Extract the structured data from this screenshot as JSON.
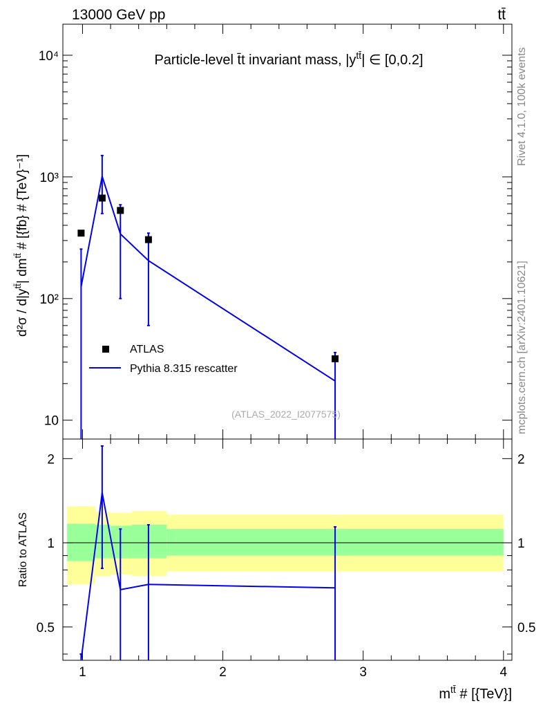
{
  "header": {
    "left": "13000 GeV pp",
    "right": "tt̄"
  },
  "side_labels": {
    "rivet": "Rivet 4.1.0,  100k events",
    "mcplots": "mcplots.cern.ch [arXiv:2401.10621]"
  },
  "chart_data": {
    "type": "line",
    "title": "Particle-level t̄t invariant mass, |y^{tt̄}| ∈ [0,0.2]",
    "analysis_id": "(ATLAS_2022_I2077575)",
    "xlabel": "m^{tt̄} # [{TeV}]",
    "ylabel": "d²σ / d|y^{tt̄}| dm^{tt̄} # [{fb} # {TeV}⁻¹]",
    "ratio_ylabel": "Ratio to ATLAS",
    "xlim": [
      0.86,
      4.06
    ],
    "ylim": [
      7,
      18000
    ],
    "yscale": "log",
    "ratio_ylim": [
      0.38,
      2.35
    ],
    "x_ticks": [
      1,
      2,
      3,
      4
    ],
    "y_ticks": [
      {
        "value": 10,
        "label": "10"
      },
      {
        "value": 100,
        "label": "10²"
      },
      {
        "value": 1000,
        "label": "10³"
      },
      {
        "value": 10000,
        "label": "10⁴"
      }
    ],
    "ratio_ticks": [
      0.5,
      1,
      2
    ],
    "legend": {
      "placement": "lower-left",
      "data_label": "ATLAS",
      "mc_label": "Pythia 8.315 rescatter"
    },
    "data": {
      "name": "ATLAS",
      "x": [
        0.99,
        1.14,
        1.27,
        1.47,
        2.8
      ],
      "y": [
        345,
        670,
        530,
        305,
        32
      ],
      "bins": [
        [
          0.89,
          1.09
        ],
        [
          1.09,
          1.2
        ],
        [
          1.2,
          1.35
        ],
        [
          1.35,
          1.6
        ],
        [
          1.6,
          4.0
        ]
      ],
      "total_band": [
        [
          0.71,
          1.35
        ],
        [
          0.76,
          1.29
        ],
        [
          0.77,
          1.28
        ],
        [
          0.76,
          1.3
        ],
        [
          0.79,
          1.26
        ]
      ],
      "stat_band": [
        [
          0.86,
          1.17
        ],
        [
          0.88,
          1.16
        ],
        [
          0.88,
          1.15
        ],
        [
          0.88,
          1.16
        ],
        [
          0.9,
          1.12
        ]
      ]
    },
    "mc": {
      "name": "Pythia 8.315 rescatter",
      "color": "#0000ee",
      "x": [
        0.99,
        1.14,
        1.27,
        1.47,
        2.8
      ],
      "y": [
        125,
        1010,
        340,
        205,
        21
      ],
      "y_err_lo": [
        0,
        500,
        100,
        60,
        0
      ],
      "y_err_hi": [
        255,
        1500,
        590,
        345,
        36
      ],
      "ratio": [
        0.36,
        1.51,
        0.68,
        0.71,
        0.69
      ],
      "ratio_err_lo": [
        0.3,
        0.81,
        0.3,
        0.3,
        0.3
      ],
      "ratio_err_hi": [
        0.4,
        2.22,
        1.12,
        1.16,
        1.14
      ]
    },
    "colors": {
      "data": "#000000",
      "mc": "#0000ee",
      "total_band": "#ffff99",
      "stat_band": "#99ff99"
    }
  }
}
